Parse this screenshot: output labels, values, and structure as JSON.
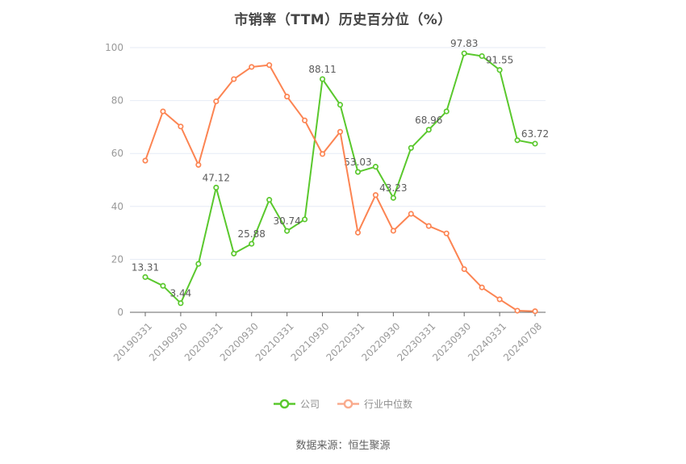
{
  "chart_data": {
    "type": "line",
    "title": "市销率（TTM）历史百分位（%）",
    "xlabel": "",
    "ylabel": "",
    "ylim": [
      0,
      100
    ],
    "y_ticks": [
      0,
      20,
      40,
      60,
      80,
      100
    ],
    "x_tick_labels": [
      "20190331",
      "20190930",
      "20200331",
      "20200930",
      "20210331",
      "20210930",
      "20220331",
      "20220930",
      "20230331",
      "20230930",
      "20240331",
      "20240708"
    ],
    "x_tick_every": 2,
    "grid": true,
    "legend_position": "bottom",
    "series": [
      {
        "name": "公司",
        "slug": "company",
        "color": "#5ac82d",
        "legend_color": "#5ac82d",
        "values": [
          13.31,
          10.0,
          3.44,
          18.3,
          47.12,
          22.2,
          25.88,
          42.5,
          30.74,
          35.1,
          88.11,
          78.4,
          53.03,
          55.0,
          43.23,
          62.1,
          68.96,
          75.9,
          97.83,
          96.8,
          91.55,
          65.0,
          63.72
        ],
        "point_labels": [
          "13.31",
          "",
          "3.44",
          "",
          "47.12",
          "",
          "25.88",
          "",
          "30.74",
          "",
          "88.11",
          "",
          "53.03",
          "",
          "43.23",
          "",
          "68.96",
          "",
          "97.83",
          "",
          "91.55",
          "",
          "63.72"
        ]
      },
      {
        "name": "行业中位数",
        "slug": "industry-median",
        "color": "#fc8452",
        "legend_color": "#f9ab8d",
        "values": [
          57.3,
          75.9,
          70.2,
          55.7,
          79.7,
          88.1,
          92.7,
          93.4,
          81.5,
          72.5,
          59.8,
          68.2,
          30.1,
          44.3,
          30.8,
          37.2,
          32.6,
          29.8,
          16.3,
          9.4,
          4.9,
          0.6,
          0.4
        ],
        "point_labels": []
      }
    ]
  },
  "footer": {
    "source": "数据来源：恒生聚源"
  },
  "colors": {
    "grid": "#e6ebf5",
    "axis": "#666666",
    "tick_label": "#999999",
    "point_label": "#5b5b5b",
    "title": "#454545",
    "legend_text": "#8f8f8f",
    "footer_text": "#616161",
    "marker_fill": "#ffffff"
  }
}
